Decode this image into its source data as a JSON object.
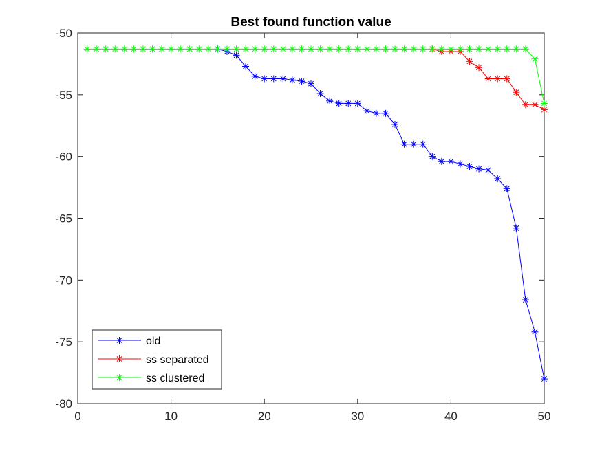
{
  "chart_data": {
    "type": "line",
    "title": "Best found function value",
    "xlabel": "",
    "ylabel": "",
    "xlim": [
      0,
      50
    ],
    "ylim": [
      -80,
      -50
    ],
    "xticks": [
      0,
      10,
      20,
      30,
      40,
      50
    ],
    "yticks": [
      -50,
      -55,
      -60,
      -65,
      -70,
      -75,
      -80
    ],
    "grid": false,
    "legend_position": "bottom-left",
    "marker": "asterisk",
    "series": [
      {
        "name": "old",
        "color": "#0000ff",
        "x": [
          15,
          16,
          17,
          18,
          19,
          20,
          21,
          22,
          23,
          24,
          25,
          26,
          27,
          28,
          29,
          30,
          31,
          32,
          33,
          34,
          35,
          36,
          37,
          38,
          39,
          40,
          41,
          42,
          43,
          44,
          45,
          46,
          47,
          48,
          49,
          50
        ],
        "values": [
          -51.3,
          -51.5,
          -51.8,
          -52.7,
          -53.5,
          -53.7,
          -53.7,
          -53.7,
          -53.8,
          -53.9,
          -54.1,
          -54.9,
          -55.5,
          -55.7,
          -55.7,
          -55.7,
          -56.3,
          -56.5,
          -56.5,
          -57.4,
          -59.0,
          -59.0,
          -59.0,
          -60.0,
          -60.4,
          -60.4,
          -60.6,
          -60.8,
          -61.0,
          -61.1,
          -61.8,
          -62.6,
          -65.8,
          -71.6,
          -74.2,
          -78.0
        ]
      },
      {
        "name": "ss separated",
        "color": "#ff0000",
        "x": [
          38,
          39,
          40,
          41,
          42,
          43,
          44,
          45,
          46,
          47,
          48,
          49,
          50
        ],
        "values": [
          -51.3,
          -51.5,
          -51.5,
          -51.5,
          -52.3,
          -52.8,
          -53.7,
          -53.7,
          -53.7,
          -54.8,
          -55.8,
          -55.8,
          -56.2
        ]
      },
      {
        "name": "ss clustered",
        "color": "#00ff00",
        "x": [
          1,
          2,
          3,
          4,
          5,
          6,
          7,
          8,
          9,
          10,
          11,
          12,
          13,
          14,
          15,
          16,
          17,
          18,
          19,
          20,
          21,
          22,
          23,
          24,
          25,
          26,
          27,
          28,
          29,
          30,
          31,
          32,
          33,
          34,
          35,
          36,
          37,
          38,
          39,
          40,
          41,
          42,
          43,
          44,
          45,
          46,
          47,
          48,
          49,
          50
        ],
        "values": [
          -51.3,
          -51.3,
          -51.3,
          -51.3,
          -51.3,
          -51.3,
          -51.3,
          -51.3,
          -51.3,
          -51.3,
          -51.3,
          -51.3,
          -51.3,
          -51.3,
          -51.3,
          -51.3,
          -51.3,
          -51.3,
          -51.3,
          -51.3,
          -51.3,
          -51.3,
          -51.3,
          -51.3,
          -51.3,
          -51.3,
          -51.3,
          -51.3,
          -51.3,
          -51.3,
          -51.3,
          -51.3,
          -51.3,
          -51.3,
          -51.3,
          -51.3,
          -51.3,
          -51.3,
          -51.3,
          -51.3,
          -51.3,
          -51.3,
          -51.3,
          -51.3,
          -51.3,
          -51.3,
          -51.3,
          -51.3,
          -52.1,
          -55.7
        ]
      }
    ]
  }
}
